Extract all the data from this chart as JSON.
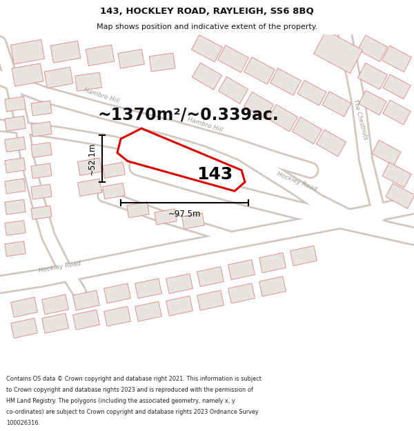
{
  "title": "143, HOCKLEY ROAD, RAYLEIGH, SS6 8BQ",
  "subtitle": "Map shows position and indicative extent of the property.",
  "area_text": "~1370m²/~0.339ac.",
  "label_143": "143",
  "dim_width": "~97.5m",
  "dim_height": "~52.1m",
  "footer": "Contains OS data © Crown copyright and database right 2021. This information is subject to Crown copyright and database rights 2023 and is reproduced with the permission of HM Land Registry. The polygons (including the associated geometry, namely x, y co-ordinates) are subject to Crown copyright and database rights 2023 Ordnance Survey 100026316.",
  "bg_color": "#ffffff",
  "map_bg": "#ffffff",
  "road_fill": "#ffffff",
  "road_border": "#d0c8c0",
  "building_fill": "#e8e4e0",
  "building_edge": "#e09090",
  "block_fill": "#e8e4e0",
  "block_edge": "#e09090",
  "property_color": "#dd0000",
  "property_fill": "none",
  "dim_color": "#111111",
  "title_color": "#111111",
  "road_label_color": "#999990",
  "footer_bg": "#ffffff",
  "area_text_color": "#111111"
}
